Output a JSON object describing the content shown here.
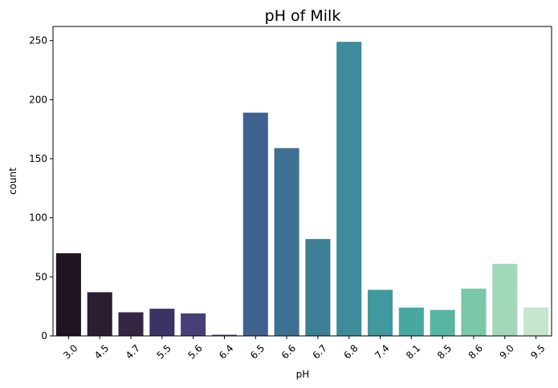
{
  "chart_data": {
    "type": "bar",
    "title": "pH of Milk",
    "xlabel": "pH",
    "ylabel": "count",
    "categories": [
      "3.0",
      "4.5",
      "4.7",
      "5.5",
      "5.6",
      "6.4",
      "6.5",
      "6.6",
      "6.7",
      "6.8",
      "7.4",
      "8.1",
      "8.5",
      "8.6",
      "9.0",
      "9.5"
    ],
    "values": [
      70,
      37,
      20,
      23,
      19,
      1,
      189,
      159,
      82,
      249,
      39,
      24,
      22,
      40,
      61,
      24
    ],
    "colors": [
      "#1f1420",
      "#2b1e32",
      "#352743",
      "#3c3264",
      "#463f78",
      "#3d5586",
      "#3f6190",
      "#3e7093",
      "#3c7e96",
      "#3e8c9b",
      "#40999e",
      "#48a8a0",
      "#57b5a4",
      "#7ac8a9",
      "#a1d8b9",
      "#c5e6cd"
    ],
    "ylim": [
      0,
      262
    ],
    "yticks": [
      0,
      50,
      100,
      150,
      200,
      250
    ],
    "grid": false,
    "legend": "none"
  }
}
